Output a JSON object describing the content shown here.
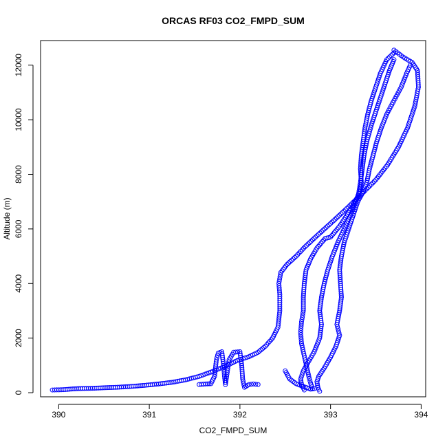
{
  "chart_data": {
    "type": "scatter",
    "title": "ORCAS RF03 CO2_FMPD_SUM",
    "xlabel": "CO2_FMPD_SUM",
    "ylabel": "Altitude (m)",
    "xlim": [
      389.8,
      394.05
    ],
    "ylim": [
      -150,
      12900
    ],
    "xticks": [
      390,
      391,
      392,
      393,
      394
    ],
    "yticks": [
      0,
      2000,
      4000,
      6000,
      8000,
      10000,
      12000
    ],
    "grid": false,
    "legend": "none",
    "marker": "open-circle",
    "color": "#0000ff",
    "series": [
      {
        "values": [
          [
            389.93,
            100
          ],
          [
            390.05,
            110
          ],
          [
            390.2,
            150
          ],
          [
            390.35,
            160
          ],
          [
            390.5,
            180
          ],
          [
            390.65,
            200
          ],
          [
            390.8,
            230
          ],
          [
            390.95,
            270
          ],
          [
            391.1,
            320
          ],
          [
            391.25,
            380
          ],
          [
            391.4,
            470
          ],
          [
            391.55,
            600
          ],
          [
            391.7,
            780
          ],
          [
            391.85,
            990
          ],
          [
            391.97,
            1180
          ],
          [
            392.1,
            1320
          ],
          [
            392.2,
            1480
          ],
          [
            392.28,
            1700
          ],
          [
            392.36,
            2000
          ],
          [
            392.42,
            2400
          ],
          [
            392.44,
            3000
          ],
          [
            392.44,
            3600
          ],
          [
            392.43,
            4000
          ],
          [
            392.45,
            4400
          ],
          [
            392.52,
            4700
          ],
          [
            392.62,
            5000
          ],
          [
            392.72,
            5350
          ],
          [
            392.85,
            5750
          ],
          [
            393.0,
            6200
          ],
          [
            393.18,
            6750
          ],
          [
            393.35,
            7300
          ],
          [
            393.5,
            7800
          ],
          [
            393.63,
            8350
          ],
          [
            393.75,
            9000
          ],
          [
            393.85,
            9700
          ],
          [
            393.93,
            10500
          ],
          [
            393.97,
            11200
          ],
          [
            393.96,
            11800
          ],
          [
            393.9,
            12100
          ],
          [
            393.8,
            12300
          ],
          [
            393.7,
            12550
          ]
        ]
      },
      {
        "values": [
          [
            392.88,
            50
          ],
          [
            392.86,
            200
          ],
          [
            392.85,
            400
          ],
          [
            392.87,
            600
          ],
          [
            392.93,
            900
          ],
          [
            393.0,
            1300
          ],
          [
            393.06,
            1700
          ],
          [
            393.1,
            2100
          ],
          [
            393.07,
            2500
          ],
          [
            393.1,
            3000
          ],
          [
            393.12,
            3500
          ],
          [
            393.11,
            4000
          ],
          [
            393.1,
            4500
          ],
          [
            393.12,
            5000
          ],
          [
            393.15,
            5500
          ],
          [
            393.2,
            6000
          ],
          [
            393.25,
            6500
          ],
          [
            393.3,
            7000
          ],
          [
            393.35,
            7300
          ],
          [
            393.4,
            7700
          ],
          [
            393.43,
            8200
          ],
          [
            393.47,
            8700
          ],
          [
            393.51,
            9200
          ],
          [
            393.56,
            9700
          ],
          [
            393.62,
            10200
          ],
          [
            393.7,
            10700
          ],
          [
            393.78,
            11200
          ],
          [
            393.84,
            11700
          ],
          [
            393.88,
            12000
          ]
        ]
      },
      {
        "values": [
          [
            392.71,
            100
          ],
          [
            392.68,
            300
          ],
          [
            392.67,
            500
          ],
          [
            392.7,
            800
          ],
          [
            392.75,
            1100
          ],
          [
            392.82,
            1500
          ],
          [
            392.88,
            2000
          ],
          [
            392.9,
            2500
          ],
          [
            392.88,
            3000
          ],
          [
            392.9,
            3500
          ],
          [
            392.93,
            4000
          ],
          [
            392.97,
            4500
          ],
          [
            393.02,
            5000
          ],
          [
            393.08,
            5500
          ],
          [
            393.15,
            6000
          ],
          [
            393.22,
            6500
          ],
          [
            393.28,
            7000
          ],
          [
            393.31,
            7300
          ],
          [
            393.33,
            7700
          ],
          [
            393.35,
            8200
          ],
          [
            393.37,
            8700
          ],
          [
            393.4,
            9200
          ],
          [
            393.45,
            9800
          ],
          [
            393.5,
            10300
          ],
          [
            393.55,
            10800
          ],
          [
            393.6,
            11300
          ],
          [
            393.65,
            11800
          ],
          [
            393.7,
            12200
          ]
        ]
      },
      {
        "values": [
          [
            392.8,
            150
          ],
          [
            392.78,
            350
          ],
          [
            392.76,
            600
          ],
          [
            392.74,
            900
          ],
          [
            392.72,
            1200
          ],
          [
            392.7,
            1500
          ],
          [
            392.68,
            1800
          ],
          [
            392.67,
            2200
          ],
          [
            392.68,
            2600
          ],
          [
            392.7,
            3000
          ],
          [
            392.7,
            3500
          ],
          [
            392.71,
            4000
          ],
          [
            392.73,
            4500
          ],
          [
            392.78,
            4900
          ],
          [
            392.85,
            5300
          ],
          [
            392.94,
            5650
          ],
          [
            393.0,
            5700
          ],
          [
            393.1,
            6100
          ],
          [
            393.2,
            6600
          ],
          [
            393.27,
            7000
          ],
          [
            393.32,
            7300
          ],
          [
            393.34,
            7700
          ],
          [
            393.33,
            8200
          ],
          [
            393.34,
            8700
          ],
          [
            393.36,
            9200
          ],
          [
            393.38,
            9700
          ],
          [
            393.41,
            10200
          ],
          [
            393.45,
            10700
          ],
          [
            393.5,
            11200
          ],
          [
            393.55,
            11700
          ],
          [
            393.62,
            12200
          ],
          [
            393.7,
            12450
          ]
        ]
      },
      {
        "values": [
          [
            392.5,
            800
          ],
          [
            392.55,
            500
          ],
          [
            392.62,
            330
          ],
          [
            392.68,
            250
          ],
          [
            392.74,
            180
          ],
          [
            392.78,
            130
          ],
          [
            392.82,
            150
          ]
        ]
      },
      {
        "values": [
          [
            391.55,
            300
          ],
          [
            391.62,
            320
          ],
          [
            391.68,
            330
          ],
          [
            391.72,
            600
          ],
          [
            391.73,
            900
          ],
          [
            391.74,
            1200
          ],
          [
            391.76,
            1450
          ],
          [
            391.8,
            1500
          ],
          [
            391.82,
            1000
          ],
          [
            391.83,
            600
          ],
          [
            391.84,
            300
          ],
          [
            391.88,
            1200
          ],
          [
            391.93,
            1480
          ],
          [
            392.0,
            1500
          ],
          [
            392.02,
            1000
          ],
          [
            392.03,
            500
          ],
          [
            392.05,
            200
          ],
          [
            392.1,
            300
          ],
          [
            392.15,
            320
          ],
          [
            392.2,
            300
          ]
        ]
      }
    ]
  }
}
